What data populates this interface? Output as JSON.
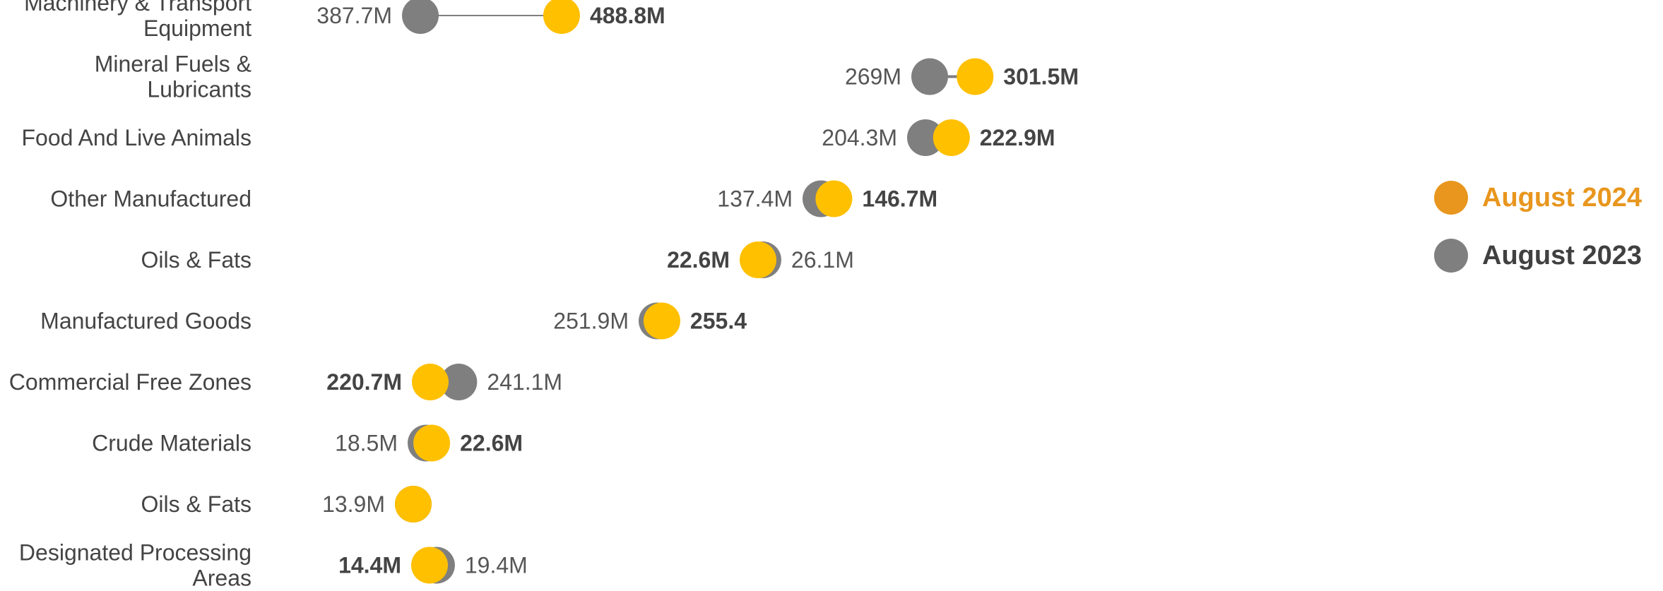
{
  "chart_data": {
    "type": "dumbbell",
    "colors": {
      "current": "#FFC000",
      "previous": "#7F7F7F",
      "legend_current": "#E8961E",
      "connector": "#7F7F7F"
    },
    "series": [
      {
        "name": "August 2024",
        "key": "current"
      },
      {
        "name": "August 2023",
        "key": "previous"
      }
    ],
    "rows": [
      {
        "label": "Machinery & Transport Equipment",
        "current": 488.8,
        "previous": 387.7,
        "current_label": "488.8M",
        "previous_label": "387.7M"
      },
      {
        "label": "Mineral Fuels & Lubricants",
        "current": 301.5,
        "previous": 269,
        "current_label": "301.5M",
        "previous_label": "269M"
      },
      {
        "label": "Food And Live Animals",
        "current": 222.9,
        "previous": 204.3,
        "current_label": "222.9M",
        "previous_label": "204.3M"
      },
      {
        "label": "Other Manufactured",
        "current": 146.7,
        "previous": 137.4,
        "current_label": "146.7M",
        "previous_label": "137.4M"
      },
      {
        "label": "Oils & Fats",
        "current": 22.6,
        "previous": 26.1,
        "current_label": "22.6M",
        "previous_label": "26.1M"
      },
      {
        "label": "Manufactured Goods",
        "current": 255.4,
        "previous": 251.9,
        "current_label": "255.4",
        "previous_label": "251.9M"
      },
      {
        "label": "Commercial Free Zones",
        "current": 220.7,
        "previous": 241.1,
        "current_label": "220.7M",
        "previous_label": "241.1M"
      },
      {
        "label": "Crude Materials",
        "current": 22.6,
        "previous": 18.5,
        "current_label": "22.6M",
        "previous_label": "18.5M"
      },
      {
        "label": "Oils & Fats",
        "current": 13.9,
        "previous": 13.9,
        "current_label": "",
        "previous_label": "13.9M"
      },
      {
        "label": "Designated Processing Areas",
        "current": 14.4,
        "previous": 19.4,
        "current_label": "14.4M",
        "previous_label": "19.4M"
      }
    ]
  }
}
